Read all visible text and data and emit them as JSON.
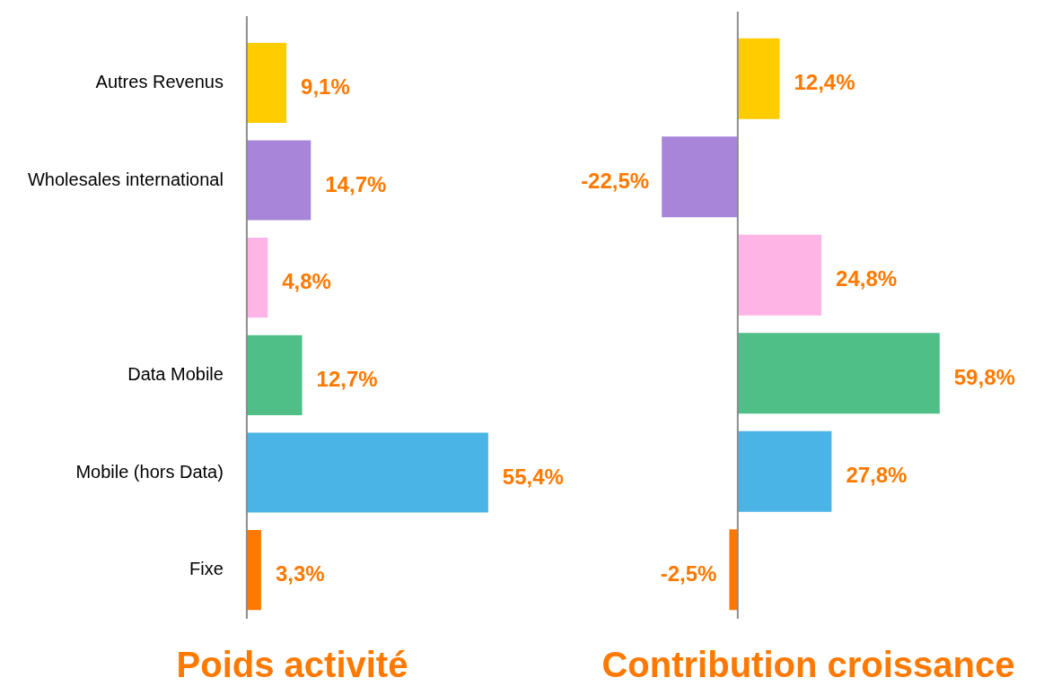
{
  "chart_data": [
    {
      "type": "bar",
      "orientation": "horizontal",
      "title": "Poids activité",
      "categories": [
        "Autres Revenus",
        "Wholesales international",
        null,
        "Data Mobile",
        "Mobile (hors Data)",
        "Fixe"
      ],
      "values": [
        9.1,
        14.7,
        4.8,
        12.7,
        55.4,
        3.3
      ],
      "value_labels": [
        "9,1%",
        "14,7%",
        "4,8%",
        "12,7%",
        "55,4%",
        "3,3%"
      ],
      "colors": [
        "#ffcc00",
        "#a885d8",
        "#ffb4e6",
        "#50be87",
        "#4bb4e6",
        "#ff7900"
      ],
      "tick_labels": "y"
    },
    {
      "type": "bar",
      "orientation": "horizontal",
      "title": "Contribution croissance",
      "categories": [
        null,
        null,
        null,
        null,
        null,
        null
      ],
      "values": [
        12.4,
        -22.5,
        24.8,
        59.8,
        27.8,
        -2.5
      ],
      "value_labels": [
        "12,4%",
        "-22,5%",
        "24,8%",
        "59,8%",
        "27,8%",
        "-2,5%"
      ],
      "colors": [
        "#ffcc00",
        "#a885d8",
        "#ffb4e6",
        "#50be87",
        "#4bb4e6",
        "#ff7900"
      ],
      "tick_labels": false
    }
  ]
}
